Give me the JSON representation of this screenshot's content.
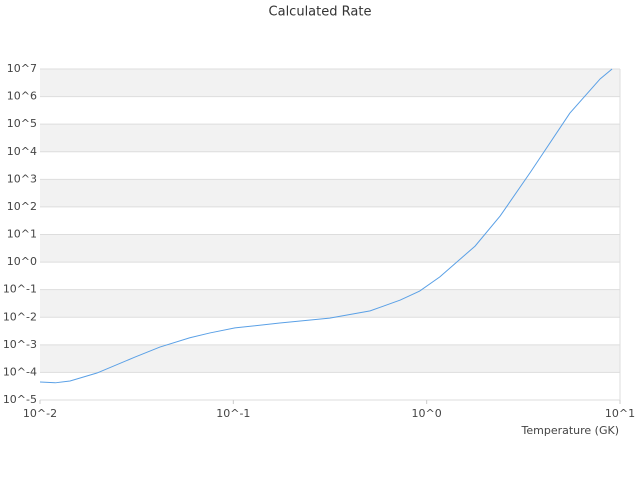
{
  "chart_data": {
    "type": "line",
    "title": "Calculated Rate",
    "x_label": "Temperature (GK)",
    "x": [
      0.01,
      0.012,
      0.0143,
      0.0197,
      0.031,
      0.0417,
      0.0596,
      0.0757,
      0.102,
      0.174,
      0.315,
      0.51,
      0.73,
      0.92,
      1.17,
      1.78,
      2.4,
      3.45,
      5.5,
      7.9,
      9.1
    ],
    "values": [
      4.5e-05,
      4.2e-05,
      4.9e-05,
      9.5e-05,
      0.00036,
      0.00083,
      0.0018,
      0.0027,
      0.0041,
      0.0062,
      0.0093,
      0.017,
      0.042,
      0.089,
      0.29,
      3.8,
      47,
      1860,
      250000,
      4400000,
      10000000
    ],
    "color": "#5aa0e6",
    "x_log": true,
    "y_log": true,
    "xlim": [
      0.01,
      10
    ],
    "ylim": [
      1e-05,
      10000000
    ],
    "xticks": [
      {
        "value": 0.01,
        "label": "10^-2"
      },
      {
        "value": 0.1,
        "label": "10^-1"
      },
      {
        "value": 1,
        "label": "10^0"
      },
      {
        "value": 10,
        "label": "10^1"
      }
    ],
    "yticks": [
      {
        "value": 1e-05,
        "label": "10^-5"
      },
      {
        "value": 0.0001,
        "label": "10^-4"
      },
      {
        "value": 0.001,
        "label": "10^-3"
      },
      {
        "value": 0.01,
        "label": "10^-2"
      },
      {
        "value": 0.1,
        "label": "10^-1"
      },
      {
        "value": 1,
        "label": "10^0"
      },
      {
        "value": 10,
        "label": "10^1"
      },
      {
        "value": 100,
        "label": "10^2"
      },
      {
        "value": 1000,
        "label": "10^3"
      },
      {
        "value": 10000,
        "label": "10^4"
      },
      {
        "value": 100000,
        "label": "10^5"
      },
      {
        "value": 1000000,
        "label": "10^6"
      },
      {
        "value": 10000000,
        "label": "10^7"
      }
    ],
    "grid": true
  }
}
